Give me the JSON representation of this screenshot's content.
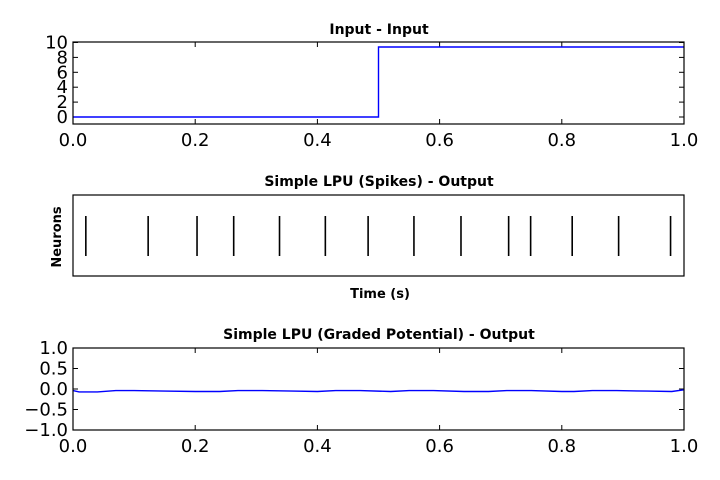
{
  "chart_data": [
    {
      "type": "line",
      "title": "Input - Input",
      "xlabel": "",
      "ylabel": "",
      "xlim": [
        0.0,
        1.0
      ],
      "ylim": [
        -1,
        10
      ],
      "xticks": [
        "0.0",
        "0.2",
        "0.4",
        "0.6",
        "0.8",
        "1.0"
      ],
      "yticks": [
        "0",
        "2",
        "4",
        "6",
        "8",
        "10"
      ],
      "grid": false,
      "series": [
        {
          "x": [
            0.0,
            0.5,
            0.5,
            1.0
          ],
          "y": [
            0,
            0,
            9.4,
            9.4
          ],
          "color": "#0000ff"
        }
      ]
    },
    {
      "type": "scatter",
      "title": "Simple LPU (Spikes) - Output",
      "xlabel": "Time (s)",
      "ylabel": "Neurons",
      "xlim": [
        0.0,
        1.0
      ],
      "grid": false,
      "spike_times": [
        0.021,
        0.123,
        0.203,
        0.263,
        0.338,
        0.413,
        0.483,
        0.558,
        0.635,
        0.713,
        0.749,
        0.817,
        0.893,
        0.978
      ],
      "color": "#000000"
    },
    {
      "type": "line",
      "title": "Simple LPU (Graded Potential) - Output",
      "xlabel": "",
      "ylabel": "",
      "xlim": [
        0.0,
        1.0
      ],
      "ylim": [
        -1.0,
        1.0
      ],
      "xticks": [
        "0.0",
        "0.2",
        "0.4",
        "0.6",
        "0.8",
        "1.0"
      ],
      "yticks": [
        "1.0",
        "0.5",
        "0.0",
        "−0.5",
        "−1.0"
      ],
      "grid": false,
      "series": [
        {
          "color": "#0000ff",
          "x": [
            0.0,
            0.01,
            0.04,
            0.07,
            0.1,
            0.15,
            0.2,
            0.24,
            0.27,
            0.31,
            0.36,
            0.4,
            0.43,
            0.47,
            0.52,
            0.55,
            0.59,
            0.64,
            0.68,
            0.71,
            0.75,
            0.8,
            0.82,
            0.85,
            0.89,
            0.94,
            0.98,
            1.0
          ],
          "y": [
            -0.04,
            -0.07,
            -0.07,
            -0.04,
            -0.04,
            -0.05,
            -0.06,
            -0.06,
            -0.04,
            -0.04,
            -0.05,
            -0.06,
            -0.04,
            -0.04,
            -0.06,
            -0.04,
            -0.04,
            -0.06,
            -0.06,
            -0.04,
            -0.04,
            -0.06,
            -0.06,
            -0.04,
            -0.04,
            -0.05,
            -0.06,
            -0.02
          ]
        }
      ]
    }
  ]
}
